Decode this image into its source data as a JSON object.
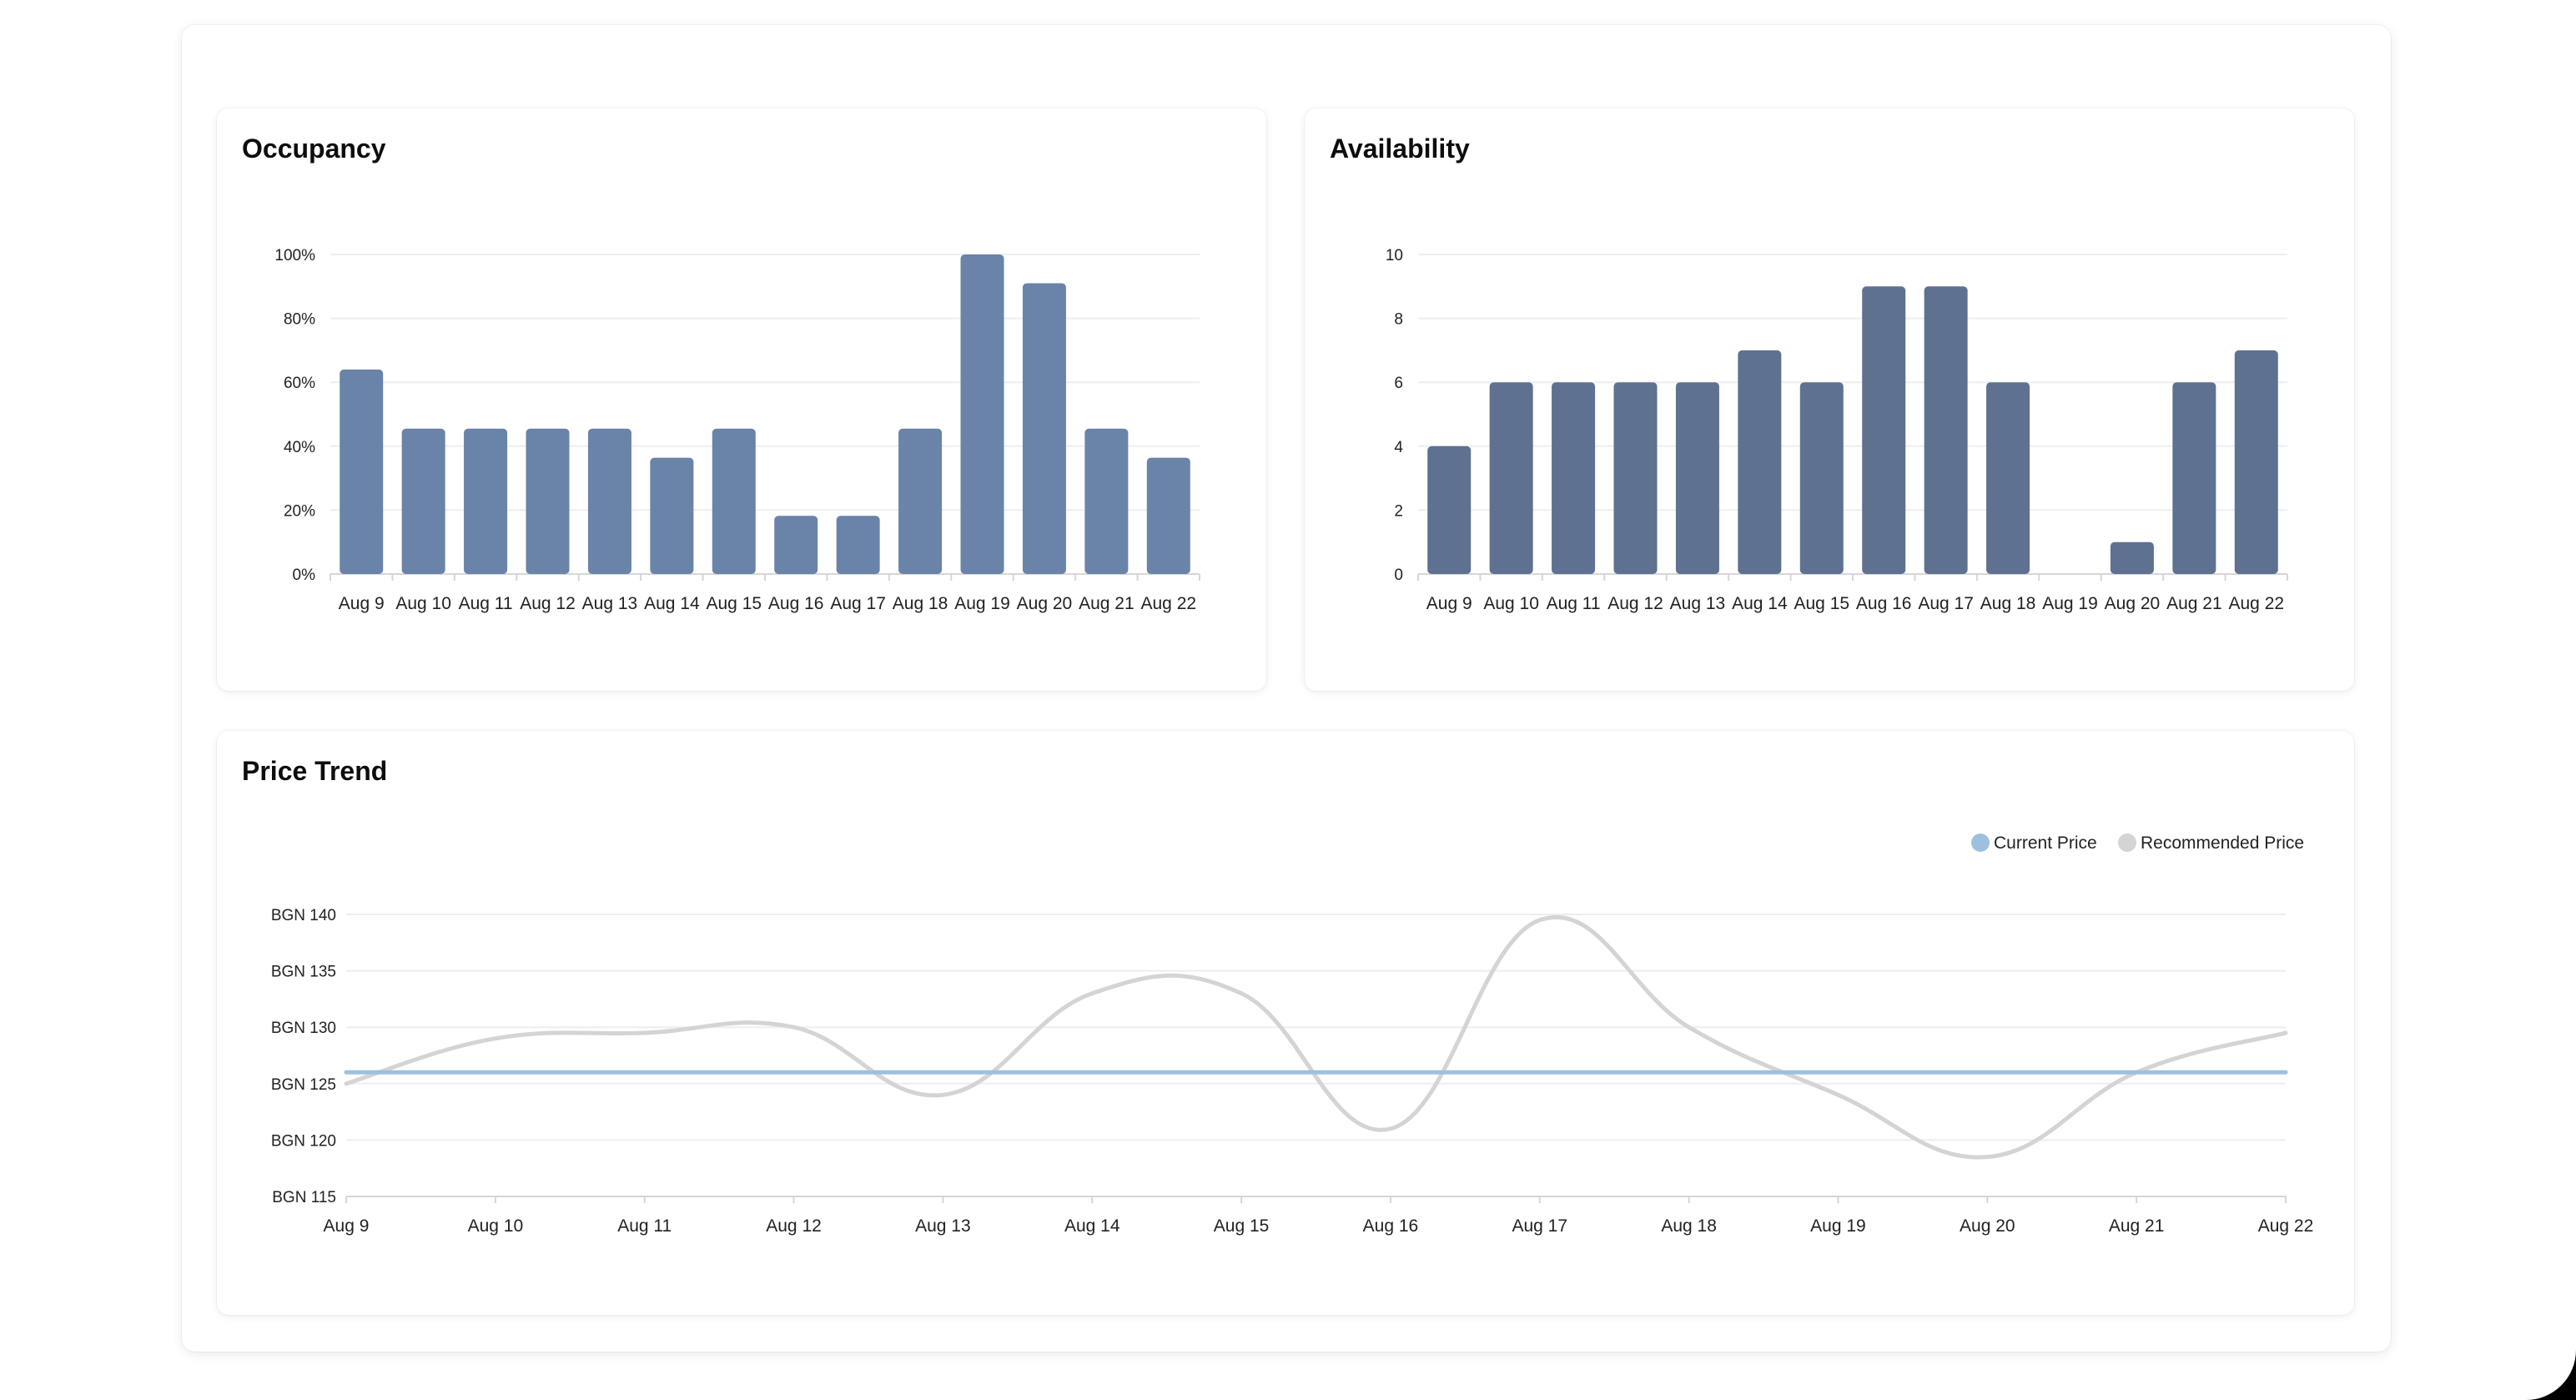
{
  "colors": {
    "occupancy_bar": "#6a83a9",
    "availability_bar": "#5e7190",
    "current_price": "#9dc0de",
    "recommended_price": "#d4d4d4",
    "grid": "#eeeeee",
    "axis": "#d6d6d6",
    "tick_text": "#222222"
  },
  "occupancy": {
    "title": "Occupancy",
    "chart_data": {
      "type": "bar",
      "title": "Occupancy",
      "categories": [
        "Aug 9",
        "Aug 10",
        "Aug 11",
        "Aug 12",
        "Aug 13",
        "Aug 14",
        "Aug 15",
        "Aug 16",
        "Aug 17",
        "Aug 18",
        "Aug 19",
        "Aug 20",
        "Aug 21",
        "Aug 22"
      ],
      "values": [
        64,
        45.5,
        45.5,
        45.5,
        45.5,
        36.4,
        45.5,
        18.2,
        18.2,
        45.5,
        100,
        91,
        45.5,
        36.4
      ],
      "ylim": [
        0,
        100
      ],
      "yticks": [
        "0%",
        "20%",
        "40%",
        "60%",
        "80%",
        "100%"
      ],
      "grid": true
    }
  },
  "availability": {
    "title": "Availability",
    "chart_data": {
      "type": "bar",
      "title": "Availability",
      "categories": [
        "Aug 9",
        "Aug 10",
        "Aug 11",
        "Aug 12",
        "Aug 13",
        "Aug 14",
        "Aug 15",
        "Aug 16",
        "Aug 17",
        "Aug 18",
        "Aug 19",
        "Aug 20",
        "Aug 21",
        "Aug 22"
      ],
      "values": [
        4,
        6,
        6,
        6,
        6,
        7,
        6,
        9,
        9,
        6,
        0,
        1,
        6,
        7
      ],
      "ylim": [
        0,
        10
      ],
      "yticks": [
        "0",
        "2",
        "4",
        "6",
        "8",
        "10"
      ],
      "grid": true
    }
  },
  "price_trend": {
    "title": "Price Trend",
    "chart_data": {
      "type": "line",
      "title": "Price Trend",
      "categories": [
        "Aug 9",
        "Aug 10",
        "Aug 11",
        "Aug 12",
        "Aug 13",
        "Aug 14",
        "Aug 15",
        "Aug 16",
        "Aug 17",
        "Aug 18",
        "Aug 19",
        "Aug 20",
        "Aug 21",
        "Aug 22"
      ],
      "series": [
        {
          "name": "Current Price",
          "values": [
            126,
            126,
            126,
            126,
            126,
            126,
            126,
            126,
            126,
            126,
            126,
            126,
            126,
            126
          ]
        },
        {
          "name": "Recommended Price",
          "values": [
            125,
            129,
            129.5,
            130,
            124,
            133,
            133,
            121,
            139.5,
            130,
            124,
            118.5,
            126,
            129.5
          ]
        }
      ],
      "ylim": [
        115,
        140
      ],
      "yticks": [
        "BGN 115",
        "BGN 120",
        "BGN 125",
        "BGN 130",
        "BGN 135",
        "BGN 140"
      ],
      "legend": "top-right",
      "grid": true,
      "smooth": true
    }
  }
}
